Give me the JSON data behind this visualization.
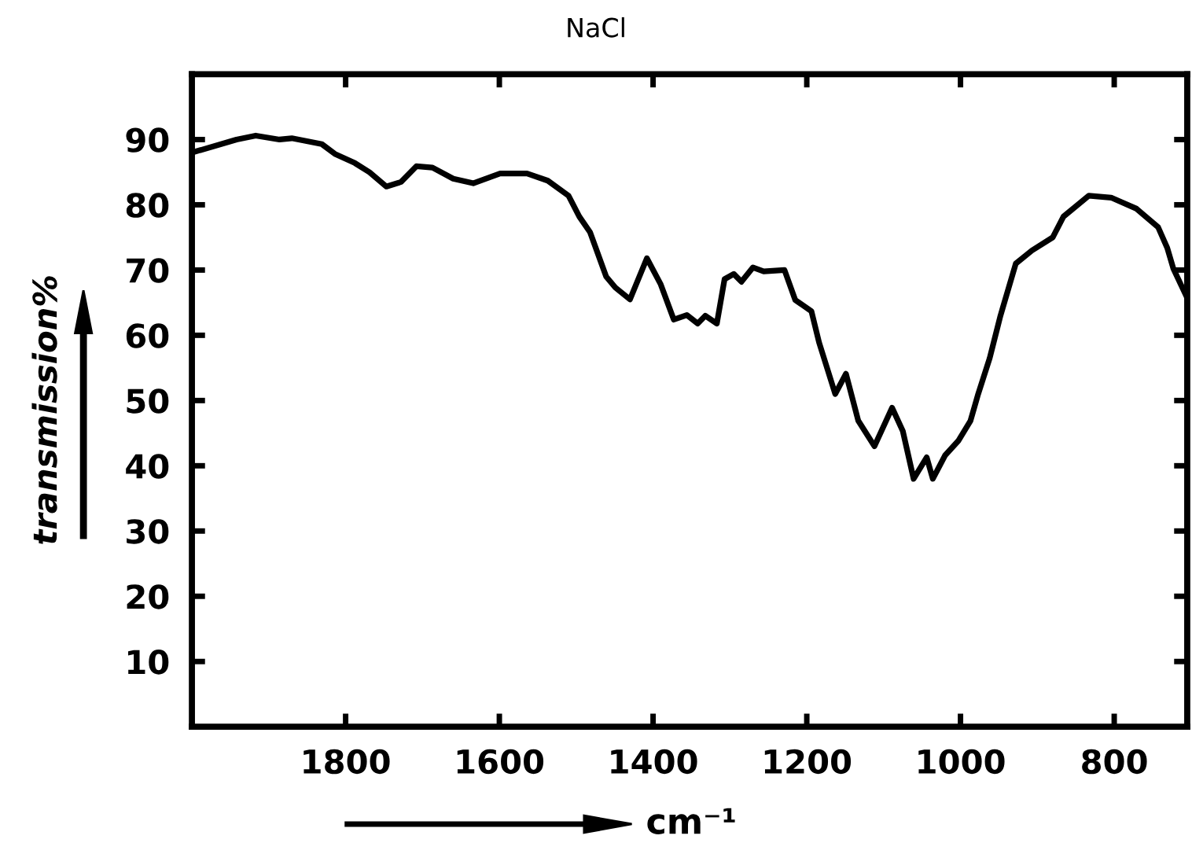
{
  "chart_data": {
    "type": "line",
    "title": "NaCl",
    "xlabel": "cm⁻¹",
    "ylabel": "transmission%",
    "xlim": [
      2000,
      705
    ],
    "xticks": [
      1800,
      1600,
      1400,
      1200,
      1000,
      800
    ],
    "ylim": [
      0,
      100
    ],
    "yticks": [
      10,
      20,
      30,
      40,
      50,
      60,
      70,
      80,
      90
    ],
    "line_style": "solid",
    "series": [
      {
        "color": "#000000",
        "x": [
          2000,
          1942,
          1917,
          1886,
          1870,
          1831,
          1814,
          1788,
          1769,
          1747,
          1728,
          1708,
          1687,
          1660,
          1634,
          1599,
          1564,
          1537,
          1510,
          1496,
          1482,
          1461,
          1449,
          1430,
          1408,
          1390,
          1373,
          1356,
          1342,
          1332,
          1317,
          1307,
          1295,
          1285,
          1270,
          1256,
          1229,
          1215,
          1194,
          1184,
          1163,
          1149,
          1133,
          1112,
          1089,
          1075,
          1061,
          1044,
          1036,
          1020,
          1003,
          987,
          977,
          962,
          948,
          928,
          907,
          880,
          866,
          833,
          804,
          771,
          743,
          731,
          723,
          705
        ],
        "values": [
          88,
          90,
          90.6,
          90,
          90.2,
          89.3,
          87.8,
          86.4,
          85,
          82.8,
          83.5,
          85.9,
          85.7,
          84,
          83.3,
          84.8,
          84.8,
          83.7,
          81.4,
          78.2,
          75.8,
          69,
          67.3,
          65.5,
          71.8,
          67.8,
          62.4,
          63.1,
          61.8,
          63,
          61.8,
          68.6,
          69.4,
          68.2,
          70.4,
          69.8,
          70,
          65.4,
          63.7,
          58.9,
          51,
          54.1,
          46.9,
          43,
          48.9,
          45.3,
          38,
          41.3,
          38,
          41.6,
          43.8,
          46.9,
          51,
          56.5,
          63,
          71,
          73,
          75,
          78.2,
          81.4,
          81.1,
          79.4,
          76.6,
          73.4,
          70.2,
          65.7
        ]
      }
    ]
  }
}
